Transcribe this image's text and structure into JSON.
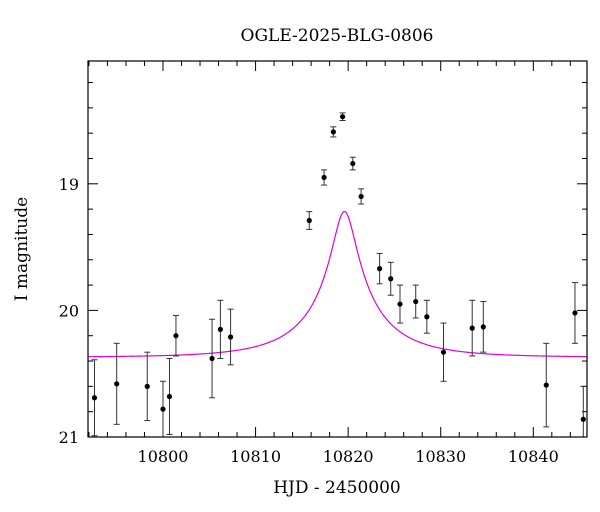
{
  "chart_data": {
    "type": "scatter",
    "title": "OGLE-2025-BLG-0806",
    "xlabel": "HJD - 2450000",
    "ylabel": "I magnitude",
    "xlim": [
      10791.9,
      10845.8
    ],
    "ylim": [
      21.0,
      18.03
    ],
    "y_inverted": true,
    "x_ticks": [
      10800,
      10810,
      10820,
      10830,
      10840
    ],
    "y_ticks": [
      19,
      20,
      21
    ],
    "x_minor_step": 2,
    "y_minor_step": 0.2,
    "grid": false,
    "legend": "none",
    "series": [
      {
        "kind": "points_with_errorbars",
        "color": "#000000",
        "points": [
          {
            "x": 10792.6,
            "y": 20.69,
            "err": 0.3
          },
          {
            "x": 10795.0,
            "y": 20.58,
            "err": 0.32
          },
          {
            "x": 10798.3,
            "y": 20.6,
            "err": 0.27
          },
          {
            "x": 10800.0,
            "y": 20.78,
            "err": 0.22
          },
          {
            "x": 10800.7,
            "y": 20.68,
            "err": 0.3
          },
          {
            "x": 10801.4,
            "y": 20.2,
            "err": 0.16
          },
          {
            "x": 10805.3,
            "y": 20.38,
            "err": 0.31
          },
          {
            "x": 10806.2,
            "y": 20.15,
            "err": 0.23
          },
          {
            "x": 10807.3,
            "y": 20.21,
            "err": 0.22
          },
          {
            "x": 10815.8,
            "y": 19.29,
            "err": 0.07
          },
          {
            "x": 10817.4,
            "y": 18.95,
            "err": 0.06
          },
          {
            "x": 10818.4,
            "y": 18.59,
            "err": 0.04
          },
          {
            "x": 10819.4,
            "y": 18.47,
            "err": 0.03
          },
          {
            "x": 10820.5,
            "y": 18.84,
            "err": 0.05
          },
          {
            "x": 10821.4,
            "y": 19.1,
            "err": 0.06
          },
          {
            "x": 10823.4,
            "y": 19.67,
            "err": 0.12
          },
          {
            "x": 10824.6,
            "y": 19.75,
            "err": 0.13
          },
          {
            "x": 10825.6,
            "y": 19.95,
            "err": 0.15
          },
          {
            "x": 10827.3,
            "y": 19.93,
            "err": 0.13
          },
          {
            "x": 10828.5,
            "y": 20.05,
            "err": 0.13
          },
          {
            "x": 10830.3,
            "y": 20.33,
            "err": 0.23
          },
          {
            "x": 10833.4,
            "y": 20.14,
            "err": 0.22
          },
          {
            "x": 10834.6,
            "y": 20.13,
            "err": 0.2
          },
          {
            "x": 10841.4,
            "y": 20.59,
            "err": 0.33
          },
          {
            "x": 10844.5,
            "y": 20.02,
            "err": 0.24
          },
          {
            "x": 10845.4,
            "y": 20.86,
            "err": 0.26
          }
        ]
      },
      {
        "kind": "model_curve",
        "color": "#e000e0",
        "model": {
          "t0": 10819.6,
          "u0": 0.15,
          "tE": 8.3,
          "baseline_mag": 20.37,
          "blend_fraction": 0.33
        }
      }
    ]
  }
}
